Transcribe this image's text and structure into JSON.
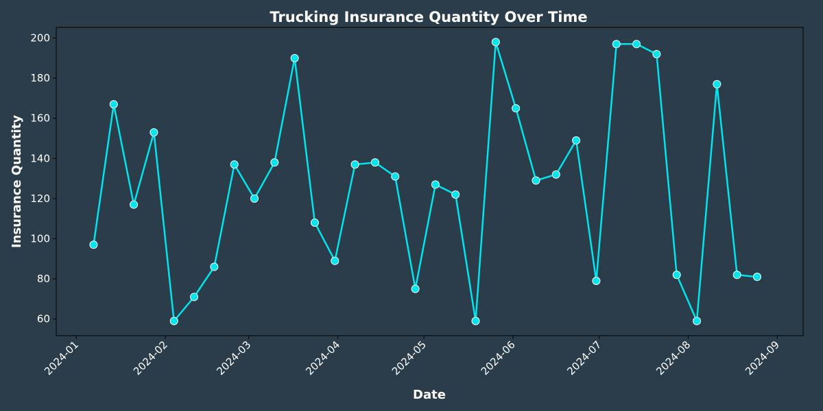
{
  "chart_data": {
    "type": "line",
    "title": "Trucking Insurance Quantity Over Time",
    "xlabel": "Date",
    "ylabel": "Insurance Quantity",
    "x_ticks": [
      "2024-01",
      "2024-02",
      "2024-03",
      "2024-04",
      "2024-05",
      "2024-06",
      "2024-07",
      "2024-08",
      "2024-09"
    ],
    "y_ticks": [
      60,
      80,
      100,
      120,
      140,
      160,
      180,
      200
    ],
    "xlim": [
      "2023-12-25",
      "2024-09-10"
    ],
    "ylim": [
      51.7,
      205.3
    ],
    "grid": false,
    "colors": {
      "background": "#2b3d4a",
      "line": "#00e5ee",
      "marker_fill": "#00e5ee",
      "marker_edge": "#ffffff",
      "text": "#ffffff"
    },
    "series": [
      {
        "x": [
          "2024-01-07",
          "2024-01-14",
          "2024-01-21",
          "2024-01-28",
          "2024-02-04",
          "2024-02-11",
          "2024-02-18",
          "2024-02-25",
          "2024-03-03",
          "2024-03-10",
          "2024-03-17",
          "2024-03-24",
          "2024-03-31",
          "2024-04-07",
          "2024-04-14",
          "2024-04-21",
          "2024-04-28",
          "2024-05-05",
          "2024-05-12",
          "2024-05-19",
          "2024-05-26",
          "2024-06-02",
          "2024-06-09",
          "2024-06-16",
          "2024-06-23",
          "2024-06-30",
          "2024-07-07",
          "2024-07-14",
          "2024-07-21",
          "2024-07-28",
          "2024-08-04",
          "2024-08-11",
          "2024-08-18",
          "2024-08-25"
        ],
        "values": [
          97,
          167,
          117,
          153,
          59,
          71,
          86,
          137,
          120,
          138,
          190,
          108,
          89,
          137,
          138,
          131,
          75,
          127,
          122,
          59,
          198,
          165,
          129,
          132,
          149,
          79,
          197,
          197,
          192,
          82,
          59,
          177,
          82,
          81
        ]
      }
    ]
  }
}
